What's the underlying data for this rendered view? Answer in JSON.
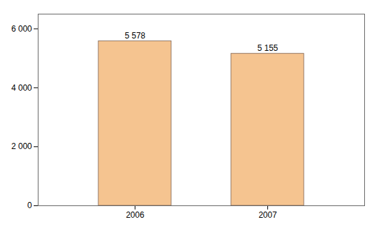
{
  "chart_data": {
    "type": "bar",
    "categories": [
      "2006",
      "2007"
    ],
    "values": [
      5578,
      5155
    ],
    "value_labels": [
      "5 578",
      "5 155"
    ],
    "data_labels": true,
    "color": "#F5C490",
    "ylim": [
      0,
      6500
    ],
    "yticks": [
      0,
      {
        "value": 2000,
        "label": "2 000"
      },
      {
        "value": 4000,
        "label": "4 000"
      },
      {
        "value": 6000,
        "label": "6 000"
      }
    ],
    "grid": false
  }
}
